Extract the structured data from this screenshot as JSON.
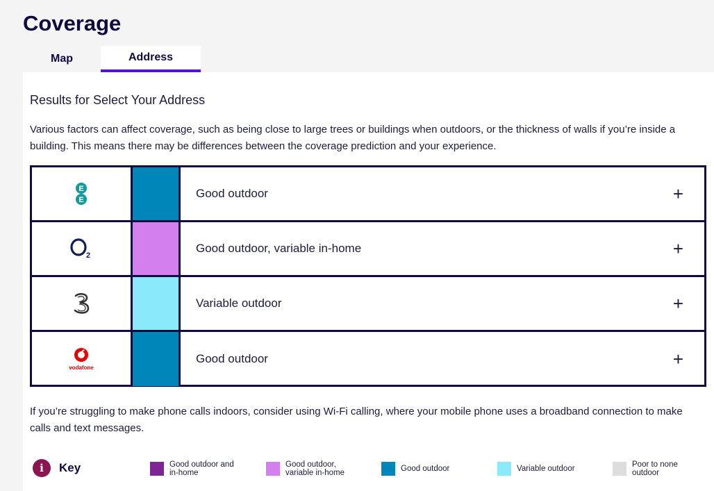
{
  "page": {
    "title": "Coverage"
  },
  "tabs": [
    {
      "label": "Map",
      "active": false
    },
    {
      "label": "Address",
      "active": true
    }
  ],
  "results": {
    "heading": "Results for Select Your Address",
    "intro": "Various factors can affect coverage, such as being close to large trees or buildings when outdoors, or the thickness of walls if you’re inside a building. This means there may be differences between the coverage prediction and your experience.",
    "rows": [
      {
        "operator_icon": "ee-logo-icon",
        "status": "Good outdoor",
        "color": "#0086b9"
      },
      {
        "operator_icon": "o2-logo-icon",
        "status": "Good outdoor, variable in-home",
        "color": "#d47fee"
      },
      {
        "operator_icon": "three-logo-icon",
        "status": "Variable outdoor",
        "color": "#8ae9fb"
      },
      {
        "operator_icon": "vodafone-logo-icon",
        "status": "Good outdoor",
        "color": "#0086b9",
        "logo_text": "vodafone"
      }
    ],
    "expand_symbol": "+",
    "footer": "If you’re struggling to make phone calls indoors, consider using Wi-Fi calling, where your mobile phone uses a broadband connection to make calls and text messages."
  },
  "key": {
    "icon_glyph": "i",
    "label": "Key",
    "items": [
      {
        "label": "Good outdoor and\nin-home",
        "color": "#7d2592"
      },
      {
        "label": "Good outdoor,\nvariable in-home",
        "color": "#d47fee"
      },
      {
        "label": "Good outdoor",
        "color": "#0086b9"
      },
      {
        "label": "Variable outdoor",
        "color": "#8ae9fb"
      },
      {
        "label": "Poor to none\noutdoor",
        "color": "#dddddd"
      }
    ]
  }
}
